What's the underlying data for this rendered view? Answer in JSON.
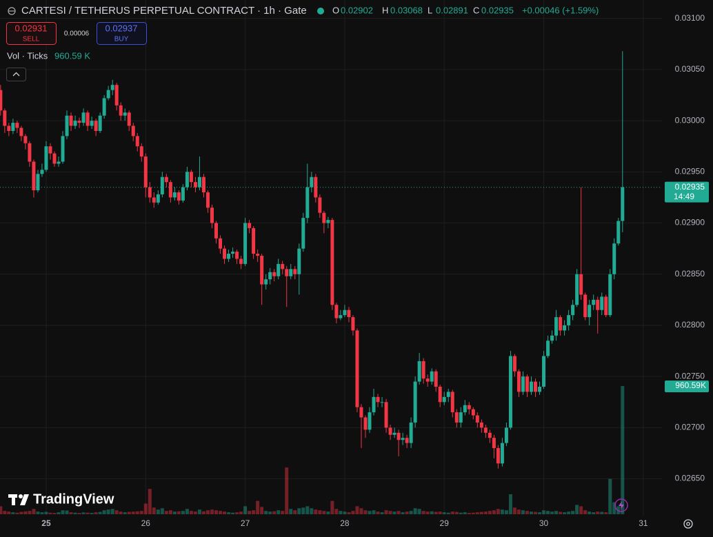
{
  "header": {
    "title": "CARTESI / TETHERUS PERPETUAL CONTRACT · 1h · Gate",
    "ohlc_labels": [
      "O",
      "H",
      "L",
      "C"
    ],
    "ohlc_values": [
      0.02902,
      0.03068,
      0.02891,
      0.02935
    ],
    "change": "+0.00046 (+1.59%)"
  },
  "trade": {
    "sell_price": 0.02931,
    "sell_label": "SELL",
    "spread": 6e-05,
    "buy_price": 0.02937,
    "buy_label": "BUY"
  },
  "indicator": {
    "name": "Vol · Ticks",
    "value": "960.59 K"
  },
  "branding": {
    "logo": "TradingView"
  },
  "chart_data": {
    "type": "candlestick",
    "up_color": "#22ab94",
    "down_color": "#f23645",
    "grid": true,
    "xlim": [
      24.536,
      31.188
    ],
    "xticks": [
      25,
      26,
      27,
      28,
      29,
      30,
      31
    ],
    "ylim": [
      0.02614,
      0.03118
    ],
    "yticks": [
      {
        "value": 0.0265,
        "label": "0.02650"
      },
      {
        "value": 0.027,
        "label": "0.02700"
      },
      {
        "value": 0.0275,
        "label": "0.02750"
      },
      {
        "value": 0.028,
        "label": "0.02800"
      },
      {
        "value": 0.0285,
        "label": "0.02850"
      },
      {
        "value": 0.029,
        "label": "0.02900"
      },
      {
        "value": 0.0295,
        "label": "0.02950"
      },
      {
        "value": 0.03,
        "label": "0.03000"
      },
      {
        "value": 0.0305,
        "label": "0.03050"
      },
      {
        "value": 0.031,
        "label": "0.03100"
      }
    ],
    "current_price": 0.02935,
    "countdown": "14:49",
    "volume_label": "960.59K",
    "x": [
      24.5417,
      24.5833,
      24.625,
      24.6667,
      24.7083,
      24.75,
      24.7917,
      24.8333,
      24.875,
      24.9167,
      24.9583,
      25,
      25.0417,
      25.0833,
      25.125,
      25.1667,
      25.2083,
      25.25,
      25.2917,
      25.3333,
      25.375,
      25.4167,
      25.4583,
      25.5,
      25.5417,
      25.5833,
      25.625,
      25.6667,
      25.7083,
      25.75,
      25.7917,
      25.8333,
      25.875,
      25.9167,
      25.9583,
      26,
      26.0417,
      26.0833,
      26.125,
      26.1667,
      26.2083,
      26.25,
      26.2917,
      26.3333,
      26.375,
      26.4167,
      26.4583,
      26.5,
      26.5417,
      26.5833,
      26.625,
      26.6667,
      26.7083,
      26.75,
      26.7917,
      26.8333,
      26.875,
      26.9167,
      26.9583,
      27,
      27.0417,
      27.0833,
      27.125,
      27.1667,
      27.2083,
      27.25,
      27.2917,
      27.3333,
      27.375,
      27.4167,
      27.4583,
      27.5,
      27.5417,
      27.5833,
      27.625,
      27.6667,
      27.7083,
      27.75,
      27.7917,
      27.8333,
      27.875,
      27.9167,
      27.9583,
      28,
      28.0417,
      28.0833,
      28.125,
      28.1667,
      28.2083,
      28.25,
      28.2917,
      28.3333,
      28.375,
      28.4167,
      28.4583,
      28.5,
      28.5417,
      28.5833,
      28.625,
      28.6667,
      28.7083,
      28.75,
      28.7917,
      28.8333,
      28.875,
      28.9167,
      28.9583,
      29,
      29.0417,
      29.0833,
      29.125,
      29.1667,
      29.2083,
      29.25,
      29.2917,
      29.3333,
      29.375,
      29.4167,
      29.4583,
      29.5,
      29.5417,
      29.5833,
      29.625,
      29.6667,
      29.7083,
      29.75,
      29.7917,
      29.8333,
      29.875,
      29.9167,
      29.9583,
      30,
      30.0417,
      30.0833,
      30.125,
      30.1667,
      30.2083,
      30.25,
      30.2917,
      30.3333,
      30.375,
      30.4167,
      30.4583,
      30.5,
      30.5417,
      30.5833,
      30.625,
      30.6667,
      30.7083,
      30.75,
      30.7917
    ],
    "open": [
      0.0303,
      0.0301,
      0.02995,
      0.0299,
      0.02998,
      0.02993,
      0.02985,
      0.02978,
      0.0296,
      0.02932,
      0.02948,
      0.02952,
      0.02975,
      0.02968,
      0.02958,
      0.0296,
      0.02985,
      0.03005,
      0.02995,
      0.03,
      0.02998,
      0.03008,
      0.02995,
      0.03,
      0.0299,
      0.03005,
      0.03022,
      0.0303,
      0.03035,
      0.03015,
      0.03005,
      0.03008,
      0.02995,
      0.02985,
      0.02975,
      0.02965,
      0.02935,
      0.02925,
      0.0292,
      0.02928,
      0.02945,
      0.0294,
      0.02925,
      0.0293,
      0.02922,
      0.02935,
      0.0295,
      0.0294,
      0.02935,
      0.02945,
      0.0293,
      0.02915,
      0.029,
      0.02885,
      0.02875,
      0.02865,
      0.0287,
      0.02872,
      0.02865,
      0.0286,
      0.029,
      0.02895,
      0.0287,
      0.02868,
      0.0284,
      0.02845,
      0.02852,
      0.02848,
      0.0286,
      0.02855,
      0.02848,
      0.02855,
      0.0285,
      0.02875,
      0.02905,
      0.02935,
      0.02945,
      0.02925,
      0.0291,
      0.029,
      0.02903,
      0.0282,
      0.02807,
      0.0281,
      0.02815,
      0.02808,
      0.02795,
      0.0272,
      0.0271,
      0.02698,
      0.02715,
      0.0273,
      0.02725,
      0.02725,
      0.027,
      0.02693,
      0.02695,
      0.02688,
      0.0269,
      0.02685,
      0.02705,
      0.02745,
      0.02765,
      0.02748,
      0.02745,
      0.02755,
      0.0274,
      0.02725,
      0.0273,
      0.02735,
      0.02715,
      0.02705,
      0.02715,
      0.02722,
      0.02718,
      0.02712,
      0.02705,
      0.027,
      0.02695,
      0.0269,
      0.0268,
      0.02665,
      0.02685,
      0.027,
      0.0277,
      0.02755,
      0.02735,
      0.0275,
      0.02735,
      0.02745,
      0.02735,
      0.0274,
      0.0277,
      0.02785,
      0.0279,
      0.02808,
      0.02795,
      0.028,
      0.0281,
      0.0282,
      0.0285,
      0.0283,
      0.02808,
      0.0282,
      0.02825,
      0.02815,
      0.02828,
      0.0281,
      0.0285,
      0.0288,
      0.02902
    ],
    "high": [
      0.03035,
      0.03012,
      0.02998,
      0.03002,
      0.03,
      0.02995,
      0.02987,
      0.0298,
      0.02962,
      0.02952,
      0.02958,
      0.0298,
      0.02978,
      0.0297,
      0.02965,
      0.0299,
      0.0301,
      0.03008,
      0.03005,
      0.03003,
      0.03012,
      0.0301,
      0.03004,
      0.03002,
      0.03008,
      0.03025,
      0.03034,
      0.0304,
      0.03037,
      0.03018,
      0.03012,
      0.0301,
      0.02998,
      0.02988,
      0.02978,
      0.02968,
      0.0294,
      0.0293,
      0.02932,
      0.0295,
      0.02948,
      0.02942,
      0.02935,
      0.02932,
      0.02938,
      0.02955,
      0.02952,
      0.02945,
      0.02965,
      0.02948,
      0.02932,
      0.02918,
      0.02902,
      0.02888,
      0.02878,
      0.02874,
      0.02876,
      0.02874,
      0.02868,
      0.02905,
      0.02903,
      0.02897,
      0.02874,
      0.0287,
      0.0285,
      0.02856,
      0.02855,
      0.02865,
      0.02863,
      0.02858,
      0.0286,
      0.02858,
      0.0288,
      0.0291,
      0.02958,
      0.0295,
      0.02948,
      0.02928,
      0.02912,
      0.02906,
      0.02905,
      0.02822,
      0.02815,
      0.0282,
      0.02818,
      0.0281,
      0.02797,
      0.02723,
      0.02712,
      0.0272,
      0.02738,
      0.02733,
      0.0273,
      0.02728,
      0.02703,
      0.027,
      0.02698,
      0.02695,
      0.02693,
      0.0271,
      0.0275,
      0.02773,
      0.02768,
      0.02752,
      0.02758,
      0.02757,
      0.02742,
      0.02735,
      0.02738,
      0.02737,
      0.02718,
      0.0272,
      0.02727,
      0.02725,
      0.0272,
      0.02715,
      0.02708,
      0.02703,
      0.02698,
      0.02693,
      0.02683,
      0.0269,
      0.02705,
      0.02775,
      0.02772,
      0.02757,
      0.02755,
      0.02752,
      0.0275,
      0.02748,
      0.02745,
      0.02775,
      0.0279,
      0.02795,
      0.02815,
      0.0281,
      0.02805,
      0.02815,
      0.02825,
      0.02855,
      0.02935,
      0.02832,
      0.02825,
      0.0283,
      0.02828,
      0.02832,
      0.0283,
      0.02855,
      0.02885,
      0.02905,
      0.03068
    ],
    "low": [
      0.03005,
      0.02988,
      0.02985,
      0.02987,
      0.02988,
      0.0298,
      0.02972,
      0.02955,
      0.02925,
      0.0293,
      0.02945,
      0.0295,
      0.02962,
      0.02955,
      0.02955,
      0.02958,
      0.02982,
      0.0299,
      0.02992,
      0.02993,
      0.02995,
      0.0299,
      0.02992,
      0.02985,
      0.02988,
      0.03002,
      0.0302,
      0.03025,
      0.0301,
      0.03,
      0.03,
      0.0299,
      0.0298,
      0.0297,
      0.0296,
      0.02925,
      0.0292,
      0.02915,
      0.02918,
      0.02925,
      0.02935,
      0.0292,
      0.02922,
      0.02918,
      0.0292,
      0.02932,
      0.02935,
      0.0293,
      0.02932,
      0.02925,
      0.0291,
      0.02895,
      0.0288,
      0.0287,
      0.0286,
      0.02862,
      0.02866,
      0.0286,
      0.02855,
      0.02858,
      0.0289,
      0.02865,
      0.02862,
      0.0282,
      0.02835,
      0.0284,
      0.02843,
      0.02845,
      0.0285,
      0.02818,
      0.02845,
      0.02845,
      0.0283,
      0.02872,
      0.029,
      0.0293,
      0.0292,
      0.02905,
      0.0289,
      0.02895,
      0.02815,
      0.02802,
      0.02805,
      0.02808,
      0.02803,
      0.0279,
      0.02715,
      0.0268,
      0.0269,
      0.02695,
      0.02712,
      0.0272,
      0.0272,
      0.02695,
      0.02688,
      0.0269,
      0.02672,
      0.02683,
      0.0268,
      0.0268,
      0.027,
      0.02742,
      0.02743,
      0.0274,
      0.02742,
      0.02735,
      0.0272,
      0.02722,
      0.02725,
      0.0271,
      0.027,
      0.027,
      0.02712,
      0.02713,
      0.02708,
      0.027,
      0.02695,
      0.0269,
      0.02685,
      0.0267,
      0.0266,
      0.02662,
      0.02682,
      0.02698,
      0.0275,
      0.0273,
      0.02732,
      0.0273,
      0.02732,
      0.0273,
      0.02732,
      0.02738,
      0.02768,
      0.02782,
      0.02785,
      0.0279,
      0.0279,
      0.02795,
      0.02805,
      0.02818,
      0.02825,
      0.02805,
      0.028,
      0.02815,
      0.02792,
      0.0281,
      0.02808,
      0.02808,
      0.02845,
      0.02878,
      0.02891
    ],
    "close": [
      0.0301,
      0.02995,
      0.0299,
      0.02998,
      0.02993,
      0.02985,
      0.02978,
      0.0296,
      0.02932,
      0.02948,
      0.02952,
      0.02975,
      0.02968,
      0.02958,
      0.0296,
      0.02985,
      0.03005,
      0.02995,
      0.03,
      0.02998,
      0.03008,
      0.02995,
      0.03,
      0.0299,
      0.03005,
      0.03022,
      0.0303,
      0.03035,
      0.03015,
      0.03005,
      0.03008,
      0.02995,
      0.02985,
      0.02975,
      0.02965,
      0.02935,
      0.02925,
      0.0292,
      0.02928,
      0.02945,
      0.0294,
      0.02925,
      0.0293,
      0.02922,
      0.02935,
      0.0295,
      0.0294,
      0.02935,
      0.02945,
      0.0293,
      0.02915,
      0.029,
      0.02885,
      0.02875,
      0.02865,
      0.0287,
      0.02872,
      0.02865,
      0.0286,
      0.029,
      0.02895,
      0.0287,
      0.02868,
      0.0284,
      0.02845,
      0.02852,
      0.02848,
      0.0286,
      0.02855,
      0.02848,
      0.02855,
      0.0285,
      0.02875,
      0.02905,
      0.02935,
      0.02945,
      0.02925,
      0.0291,
      0.029,
      0.02903,
      0.0282,
      0.02807,
      0.0281,
      0.02815,
      0.02808,
      0.02795,
      0.0272,
      0.0271,
      0.02698,
      0.02715,
      0.0273,
      0.02725,
      0.02725,
      0.027,
      0.02693,
      0.02695,
      0.02688,
      0.0269,
      0.02685,
      0.02705,
      0.02745,
      0.02765,
      0.02748,
      0.02745,
      0.02755,
      0.0274,
      0.02725,
      0.0273,
      0.02735,
      0.02715,
      0.02705,
      0.02715,
      0.02722,
      0.02718,
      0.02712,
      0.02705,
      0.027,
      0.02695,
      0.0269,
      0.0268,
      0.02665,
      0.02685,
      0.027,
      0.0277,
      0.02755,
      0.02735,
      0.0275,
      0.02735,
      0.02745,
      0.02735,
      0.0274,
      0.0277,
      0.02785,
      0.0279,
      0.02808,
      0.02795,
      0.028,
      0.0281,
      0.0282,
      0.0285,
      0.0283,
      0.02808,
      0.0282,
      0.02825,
      0.02815,
      0.02828,
      0.0281,
      0.0285,
      0.0288,
      0.02902,
      0.02935
    ],
    "volume": [
      60000,
      25000,
      20000,
      15000,
      12000,
      18000,
      22000,
      25000,
      40000,
      20000,
      15000,
      18000,
      12000,
      10000,
      15000,
      30000,
      28000,
      15000,
      12000,
      10000,
      14000,
      12000,
      10000,
      15000,
      18000,
      30000,
      35000,
      40000,
      30000,
      20000,
      15000,
      18000,
      20000,
      22000,
      25000,
      80000,
      190000,
      50000,
      35000,
      45000,
      25000,
      30000,
      20000,
      22000,
      25000,
      40000,
      25000,
      20000,
      35000,
      22000,
      30000,
      35000,
      30000,
      25000,
      20000,
      15000,
      12000,
      15000,
      20000,
      60000,
      25000,
      30000,
      100000,
      55000,
      25000,
      20000,
      22000,
      30000,
      25000,
      350000,
      40000,
      30000,
      45000,
      50000,
      60000,
      45000,
      35000,
      30000,
      25000,
      20000,
      100000,
      40000,
      25000,
      20000,
      15000,
      25000,
      60000,
      45000,
      30000,
      25000,
      30000,
      20000,
      15000,
      30000,
      25000,
      20000,
      25000,
      15000,
      20000,
      25000,
      45000,
      40000,
      25000,
      20000,
      22000,
      18000,
      20000,
      15000,
      12000,
      20000,
      18000,
      12000,
      15000,
      10000,
      12000,
      15000,
      18000,
      20000,
      25000,
      30000,
      40000,
      35000,
      30000,
      150000,
      50000,
      35000,
      30000,
      25000,
      20000,
      18000,
      15000,
      30000,
      25000,
      20000,
      25000,
      18000,
      15000,
      20000,
      25000,
      70000,
      60000,
      30000,
      20000,
      15000,
      20000,
      18000,
      15000,
      265000,
      90000,
      60000,
      960590
    ]
  }
}
